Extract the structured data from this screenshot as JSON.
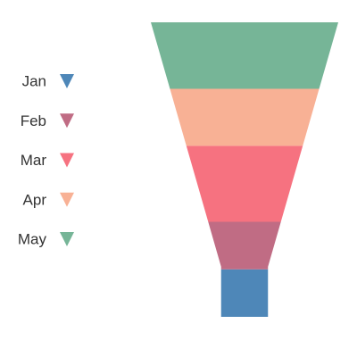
{
  "chart_data": {
    "type": "funnel",
    "categories": [
      "Jan",
      "Feb",
      "Mar",
      "Apr",
      "May"
    ],
    "values": [
      10,
      10,
      16,
      12,
      14
    ],
    "colors": [
      "#4e87b8",
      "#c06c84",
      "#f67280",
      "#f8b195",
      "#76b597"
    ],
    "legend": {
      "position": "left",
      "entries": [
        "Jan",
        "Feb",
        "Mar",
        "Apr",
        "May"
      ]
    },
    "neck": {
      "height_fraction": 0.17,
      "width_fraction": 0.25
    },
    "title": "",
    "xlabel": "",
    "ylabel": ""
  }
}
